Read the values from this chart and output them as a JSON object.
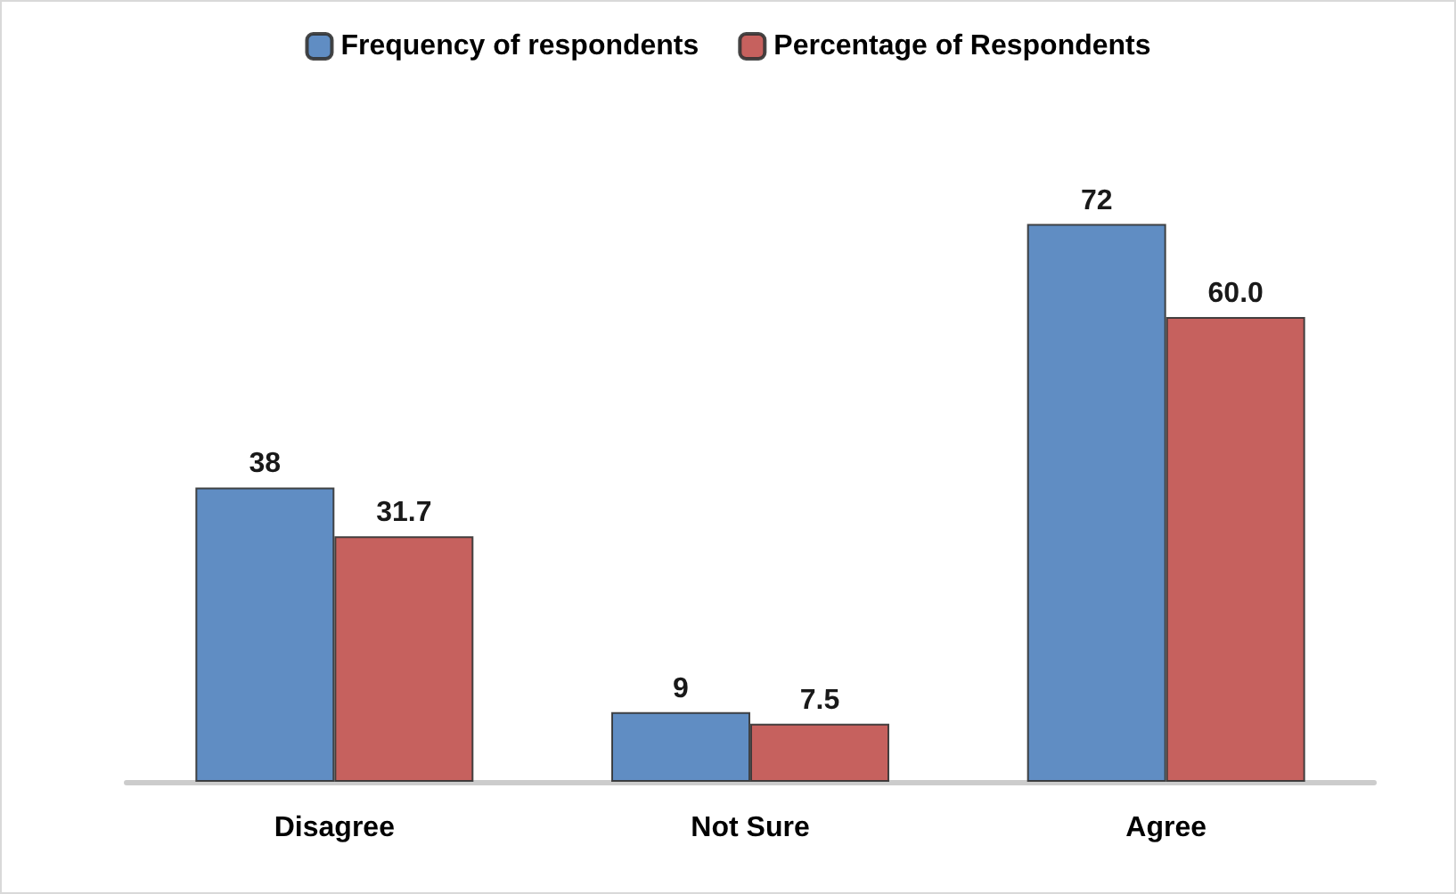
{
  "chart_data": {
    "type": "bar",
    "categories": [
      "Disagree",
      "Not Sure",
      "Agree"
    ],
    "series": [
      {
        "name": "Frequency of respondents",
        "color": "#4f81bd",
        "values": [
          38,
          9,
          72
        ]
      },
      {
        "name": "Percentage of Respondents",
        "color": "#c0504d",
        "values": [
          31.7,
          7.5,
          60.0
        ],
        "value_labels": [
          "31.7",
          "7.5",
          "60.0"
        ]
      }
    ],
    "data_labels": true,
    "legend": "top",
    "grid": false
  }
}
